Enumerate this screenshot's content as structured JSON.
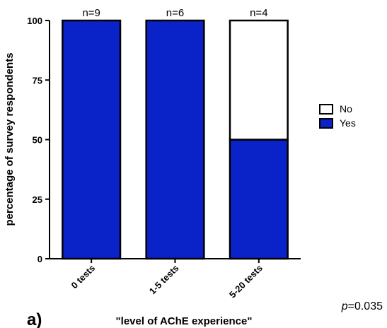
{
  "chart_data": {
    "type": "bar",
    "stacked": true,
    "categories": [
      "0 tests",
      "1-5 tests",
      "5-20 tests"
    ],
    "annotations": [
      "n=9",
      "n=6",
      "n=4"
    ],
    "series": [
      {
        "name": "Yes",
        "values": [
          100,
          100,
          50
        ],
        "color": "#0a23c8"
      },
      {
        "name": "No",
        "values": [
          0,
          0,
          50
        ],
        "color": "#ffffff"
      }
    ],
    "ylabel": "percentage of survey respondents",
    "xlabel": "\"level of AChE experience\"",
    "ylim": [
      0,
      100
    ],
    "yticks": [
      0,
      25,
      50,
      75,
      100
    ],
    "legend": {
      "placement": "right",
      "items": [
        "No",
        "Yes"
      ]
    },
    "panel_label": "a)",
    "p_prefix": "p",
    "p_value": "=0.035"
  }
}
